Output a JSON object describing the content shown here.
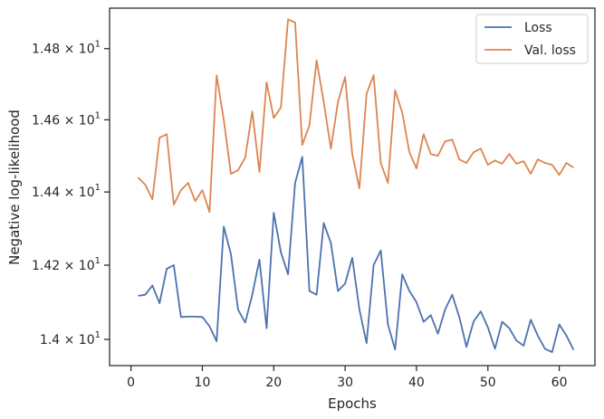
{
  "chart_data": {
    "type": "line",
    "xlabel": "Epochs",
    "ylabel": "Negative log-likelihood",
    "xlim": [
      -3,
      65
    ],
    "ylim": [
      13.93,
      14.915
    ],
    "x_ticks": [
      0,
      10,
      20,
      30,
      40,
      50,
      60
    ],
    "y_ticks": [
      {
        "value": 14.0,
        "base": "1.4",
        "exp": "1"
      },
      {
        "value": 14.2,
        "base": "1.42",
        "exp": "1"
      },
      {
        "value": 14.4,
        "base": "1.44",
        "exp": "1"
      },
      {
        "value": 14.6,
        "base": "1.46",
        "exp": "1"
      },
      {
        "value": 14.8,
        "base": "1.48",
        "exp": "1"
      }
    ],
    "y_scale": "log",
    "grid": false,
    "legend_position": "top-right",
    "series": [
      {
        "name": "Loss",
        "color": "#4c72b0",
        "x": [
          1,
          2,
          3,
          4,
          5,
          6,
          7,
          8,
          9,
          10,
          11,
          12,
          13,
          14,
          15,
          16,
          17,
          18,
          19,
          20,
          21,
          22,
          23,
          24,
          25,
          26,
          27,
          28,
          29,
          30,
          31,
          32,
          33,
          34,
          35,
          36,
          37,
          38,
          39,
          40,
          41,
          42,
          43,
          44,
          45,
          46,
          47,
          48,
          49,
          50,
          51,
          52,
          53,
          54,
          55,
          56,
          57,
          58,
          59,
          60,
          61,
          62
        ],
        "values": [
          14.117,
          14.12,
          14.145,
          14.097,
          14.19,
          14.2,
          14.06,
          14.061,
          14.061,
          14.06,
          14.035,
          13.995,
          14.305,
          14.23,
          14.08,
          14.045,
          14.12,
          14.215,
          14.03,
          14.343,
          14.235,
          14.175,
          14.425,
          14.497,
          14.13,
          14.12,
          14.315,
          14.26,
          14.13,
          14.15,
          14.22,
          14.08,
          13.99,
          14.2,
          14.24,
          14.04,
          13.973,
          14.175,
          14.13,
          14.1,
          14.047,
          14.065,
          14.015,
          14.08,
          14.12,
          14.06,
          13.98,
          14.048,
          14.075,
          14.032,
          13.975,
          14.047,
          14.03,
          13.997,
          13.983,
          14.053,
          14.01,
          13.975,
          13.966,
          14.04,
          14.01,
          13.972
        ]
      },
      {
        "name": "Val. loss",
        "color": "#dd8452",
        "x": [
          1,
          2,
          3,
          4,
          5,
          6,
          7,
          8,
          9,
          10,
          11,
          12,
          13,
          14,
          15,
          16,
          17,
          18,
          19,
          20,
          21,
          22,
          23,
          24,
          25,
          26,
          27,
          28,
          29,
          30,
          31,
          32,
          33,
          34,
          35,
          36,
          37,
          38,
          39,
          40,
          41,
          42,
          43,
          44,
          45,
          46,
          47,
          48,
          49,
          50,
          51,
          52,
          53,
          54,
          55,
          56,
          57,
          58,
          59,
          60,
          61,
          62
        ],
        "values": [
          14.44,
          14.42,
          14.38,
          14.55,
          14.56,
          14.365,
          14.405,
          14.425,
          14.375,
          14.405,
          14.345,
          14.725,
          14.6,
          14.45,
          14.46,
          14.495,
          14.623,
          14.455,
          14.705,
          14.605,
          14.635,
          14.883,
          14.874,
          14.53,
          14.585,
          14.767,
          14.65,
          14.52,
          14.65,
          14.72,
          14.505,
          14.41,
          14.673,
          14.725,
          14.48,
          14.425,
          14.683,
          14.62,
          14.51,
          14.465,
          14.56,
          14.505,
          14.5,
          14.54,
          14.545,
          14.49,
          14.48,
          14.51,
          14.52,
          14.475,
          14.487,
          14.478,
          14.505,
          14.478,
          14.485,
          14.45,
          14.49,
          14.48,
          14.475,
          14.447,
          14.48,
          14.467
        ]
      }
    ]
  }
}
